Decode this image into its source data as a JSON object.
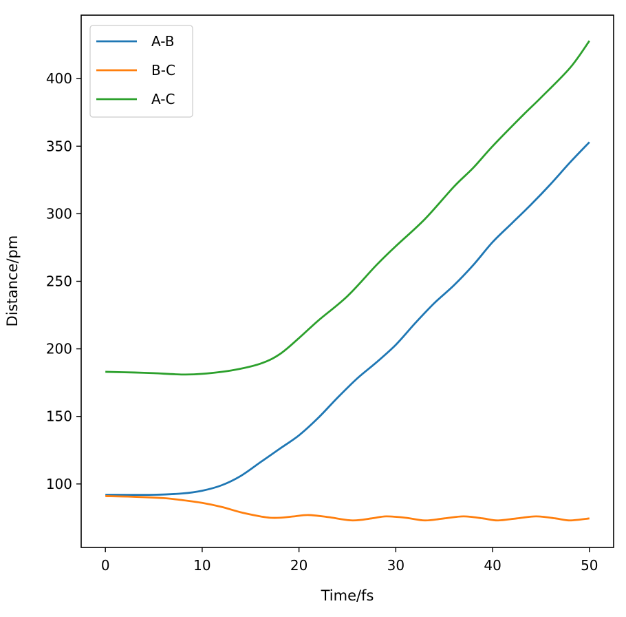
{
  "chart_data": {
    "type": "line",
    "title": "",
    "xlabel": "Time/fs",
    "ylabel": "Distance/pm",
    "xlim": [
      -2.5,
      52.5
    ],
    "ylim": [
      53,
      447
    ],
    "xticks": [
      0,
      10,
      20,
      30,
      40,
      50
    ],
    "yticks": [
      100,
      150,
      200,
      250,
      300,
      350,
      400
    ],
    "grid": false,
    "legend_position": "top-left",
    "series": [
      {
        "name": "A-B",
        "color": "#1f77b4",
        "x": [
          0,
          5,
          8,
          10,
          12,
          14,
          16,
          18,
          20,
          22,
          24,
          26,
          28,
          30,
          32,
          34,
          36,
          38,
          40,
          42,
          44,
          46,
          48,
          50
        ],
        "y": [
          92,
          92,
          93,
          95,
          99,
          106,
          116,
          126,
          136,
          149,
          164,
          178,
          190,
          203,
          219,
          234,
          247,
          262,
          279,
          293,
          307,
          322,
          338,
          353
        ]
      },
      {
        "name": "B-C",
        "color": "#ff7f0e",
        "x": [
          0,
          3,
          6,
          8,
          10,
          12,
          14,
          16,
          17,
          18,
          19.5,
          21,
          23,
          25.5,
          27.5,
          29,
          31,
          33,
          35,
          37,
          39,
          40.5,
          42.5,
          44.5,
          46.5,
          48,
          50
        ],
        "y": [
          91,
          90.5,
          89.5,
          88,
          86,
          83,
          79,
          76,
          75,
          75,
          76,
          77,
          75.5,
          73,
          74.5,
          76,
          75,
          73,
          74.5,
          76,
          74.5,
          73,
          74.5,
          76,
          74.5,
          73,
          74.5
        ]
      },
      {
        "name": "A-C",
        "color": "#2ca02c",
        "x": [
          0,
          3,
          5,
          8,
          10,
          13,
          16,
          18,
          20,
          22,
          25,
          28,
          30,
          33,
          36,
          38,
          40,
          43,
          45,
          48,
          50
        ],
        "y": [
          183,
          182.5,
          182,
          181,
          181.5,
          184,
          189,
          196,
          208,
          221,
          239,
          262,
          276,
          296,
          320,
          334,
          350,
          372,
          386,
          408,
          428
        ]
      }
    ]
  }
}
